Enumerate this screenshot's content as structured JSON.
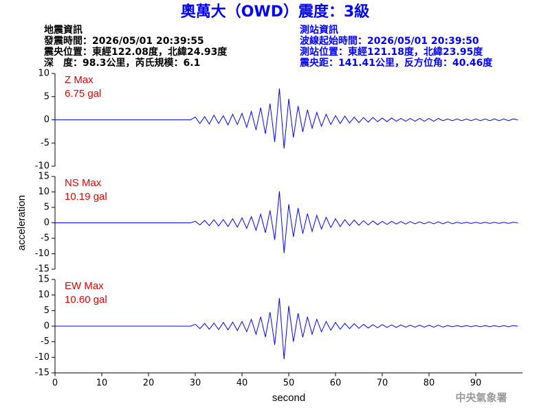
{
  "header": {
    "title": "奧萬大（OWD）震度：3級",
    "left": [
      "地震資訊",
      "發震時間：2026/05/01 20:39:55",
      "震央位置：東經122.08度，北緯24.93度",
      "深　度：98.3公里，芮氏規模：6.1"
    ],
    "right": [
      "測站資訊",
      "波線起始時間：2026/05/01 20:39:50",
      "測站位置：東經121.18度，北緯23.95度",
      "震央距：141.41公里，反方位角：40.46度"
    ]
  },
  "footer": "中央氣象署",
  "chart_data": [
    {
      "type": "line",
      "label": "Z Max",
      "max_label": "6.75 gal",
      "color": "#0000ff",
      "xlim": [
        0,
        100
      ],
      "ylim": [
        -10,
        10
      ],
      "yticks": [
        -10,
        -5,
        0,
        5,
        10
      ],
      "x": [
        0,
        29,
        30,
        31,
        32,
        33,
        34,
        35,
        36,
        37,
        38,
        39,
        40,
        41,
        42,
        43,
        44,
        45,
        46,
        47,
        48,
        49,
        50,
        51,
        52,
        53,
        54,
        55,
        56,
        57,
        58,
        59,
        60,
        61,
        62,
        63,
        64,
        65,
        66,
        67,
        68,
        69,
        70,
        71,
        72,
        73,
        74,
        75,
        76,
        77,
        78,
        79,
        80,
        81,
        82,
        83,
        84,
        85,
        86,
        87,
        88,
        89,
        90,
        91,
        92,
        93,
        94,
        95,
        96,
        97,
        98,
        99
      ],
      "values": [
        0,
        0,
        0.6,
        -0.8,
        0.7,
        -0.9,
        1.0,
        -0.8,
        0.9,
        -1.1,
        1.2,
        -1.0,
        1.4,
        -1.6,
        1.8,
        -2.2,
        2.6,
        -3.0,
        3.5,
        -4.8,
        6.75,
        -6.2,
        4.5,
        -3.8,
        3.0,
        -2.6,
        2.2,
        -1.8,
        1.6,
        -1.4,
        1.2,
        -1.0,
        0.9,
        -0.8,
        0.8,
        -0.7,
        0.6,
        -0.6,
        0.5,
        -0.5,
        0.5,
        -0.4,
        0.4,
        -0.4,
        0.4,
        -0.3,
        0.3,
        -0.3,
        0.3,
        -0.3,
        0.3,
        -0.3,
        0.3,
        -0.3,
        0.3,
        -0.2,
        0.2,
        -0.2,
        0.2,
        -0.2,
        0.2,
        -0.2,
        0.2,
        -0.2,
        0.2,
        -0.2,
        0.2,
        -0.2,
        0.2,
        -0.2,
        0.2,
        0
      ]
    },
    {
      "type": "line",
      "label": "NS Max",
      "max_label": "10.19 gal",
      "color": "#0000ff",
      "ylabel": "acceleration",
      "xlim": [
        0,
        100
      ],
      "ylim": [
        -15,
        15
      ],
      "yticks": [
        -15,
        -10,
        -5,
        0,
        5,
        10,
        15
      ],
      "x": [
        0,
        29,
        30,
        31,
        32,
        33,
        34,
        35,
        36,
        37,
        38,
        39,
        40,
        41,
        42,
        43,
        44,
        45,
        46,
        47,
        48,
        49,
        50,
        51,
        52,
        53,
        54,
        55,
        56,
        57,
        58,
        59,
        60,
        61,
        62,
        63,
        64,
        65,
        66,
        67,
        68,
        69,
        70,
        71,
        72,
        73,
        74,
        75,
        76,
        77,
        78,
        79,
        80,
        81,
        82,
        83,
        84,
        85,
        86,
        87,
        88,
        89,
        90,
        91,
        92,
        93,
        94,
        95,
        96,
        97,
        98,
        99
      ],
      "values": [
        0,
        0,
        0.5,
        -0.7,
        0.8,
        -0.9,
        1.0,
        -1.0,
        1.1,
        -1.2,
        1.3,
        -1.4,
        1.6,
        -1.8,
        2.0,
        -2.4,
        2.8,
        -3.2,
        4.0,
        -5.5,
        10.19,
        -9.8,
        6.0,
        -4.5,
        4.8,
        -3.5,
        3.0,
        -2.8,
        2.4,
        -2.0,
        1.8,
        -1.5,
        1.3,
        -1.2,
        1.0,
        -0.9,
        0.9,
        -0.8,
        0.7,
        -0.7,
        0.6,
        -0.6,
        0.5,
        -0.5,
        0.5,
        -0.4,
        0.4,
        -0.4,
        0.4,
        -0.3,
        0.3,
        -0.3,
        0.3,
        -0.3,
        0.3,
        -0.3,
        0.3,
        -0.3,
        0.2,
        -0.2,
        0.2,
        -0.2,
        0.2,
        -0.2,
        0.2,
        -0.2,
        0.2,
        -0.2,
        0.2,
        -0.2,
        0.2,
        0
      ]
    },
    {
      "type": "line",
      "label": "EW Max",
      "max_label": "10.60 gal",
      "color": "#0000ff",
      "xlabel": "second",
      "xlim": [
        0,
        100
      ],
      "ylim": [
        -15,
        15
      ],
      "yticks": [
        -15,
        -10,
        -5,
        0,
        5,
        10,
        15
      ],
      "xticks": [
        0,
        10,
        20,
        30,
        40,
        50,
        60,
        70,
        80,
        90
      ],
      "x": [
        0,
        29,
        30,
        31,
        32,
        33,
        34,
        35,
        36,
        37,
        38,
        39,
        40,
        41,
        42,
        43,
        44,
        45,
        46,
        47,
        48,
        49,
        50,
        51,
        52,
        53,
        54,
        55,
        56,
        57,
        58,
        59,
        60,
        61,
        62,
        63,
        64,
        65,
        66,
        67,
        68,
        69,
        70,
        71,
        72,
        73,
        74,
        75,
        76,
        77,
        78,
        79,
        80,
        81,
        82,
        83,
        84,
        85,
        86,
        87,
        88,
        89,
        90,
        91,
        92,
        93,
        94,
        95,
        96,
        97,
        98,
        99
      ],
      "values": [
        0,
        0,
        0.6,
        -0.8,
        0.9,
        -1.0,
        1.0,
        -1.1,
        1.2,
        -1.2,
        1.3,
        -1.4,
        1.5,
        -1.8,
        2.2,
        -2.6,
        3.0,
        -3.5,
        4.5,
        -6.0,
        9.0,
        -10.6,
        6.5,
        -5.0,
        4.2,
        -3.6,
        3.0,
        -2.6,
        2.2,
        -1.8,
        1.5,
        -1.3,
        1.2,
        -1.0,
        0.9,
        -0.8,
        0.8,
        -0.7,
        0.6,
        -0.6,
        0.5,
        -0.5,
        0.5,
        -0.4,
        0.4,
        -0.4,
        0.4,
        -0.3,
        0.3,
        -0.3,
        0.3,
        -0.3,
        0.3,
        -0.3,
        0.3,
        -0.3,
        0.2,
        -0.2,
        0.2,
        -0.2,
        0.2,
        -0.2,
        0.2,
        -0.2,
        0.2,
        -0.2,
        0.2,
        -0.2,
        0.2,
        -0.2,
        0.2,
        0
      ]
    }
  ]
}
